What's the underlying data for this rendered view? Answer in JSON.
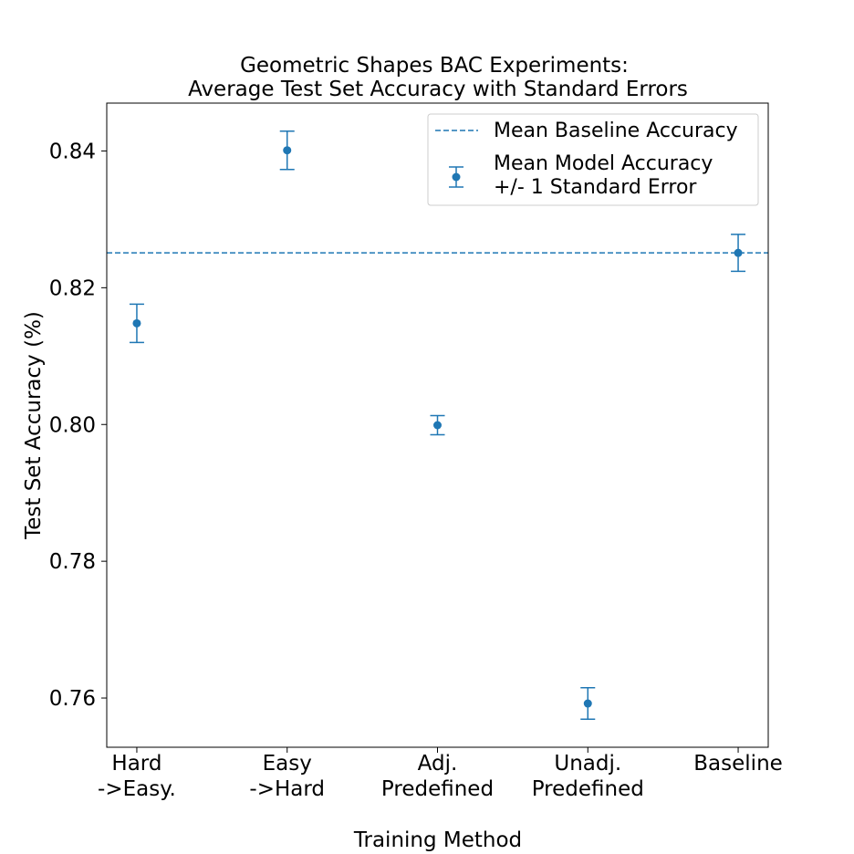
{
  "chart_data": {
    "type": "errorbar",
    "title_line1": "Geometric Shapes BAC Experiments:",
    "title_line2": "Average Test Set Accuracy with Standard Errors",
    "xlabel": "Training Method",
    "ylabel": "Test Set Accuracy (%)",
    "categories": [
      {
        "line1": "Hard",
        "line2": "->Easy."
      },
      {
        "line1": "Easy",
        "line2": "->Hard"
      },
      {
        "line1": "Adj.",
        "line2": "Predefined"
      },
      {
        "line1": "Unadj.",
        "line2": "Predefined"
      },
      {
        "line1": "Baseline",
        "line2": ""
      }
    ],
    "series": [
      {
        "name": "Mean Model Accuracy\n+/- 1 Standard Error",
        "values": [
          0.8148,
          0.8401,
          0.7999,
          0.7592,
          0.8251
        ],
        "errors": [
          0.0028,
          0.0028,
          0.0014,
          0.0023,
          0.0027
        ]
      }
    ],
    "baseline": {
      "name": "Mean Baseline Accuracy",
      "value": 0.8251
    },
    "ylim": [
      0.7528,
      0.847
    ],
    "yticks": [
      0.76,
      0.78,
      0.8,
      0.82,
      0.84
    ],
    "ytick_labels": [
      "0.76",
      "0.78",
      "0.80",
      "0.82",
      "0.84"
    ],
    "legend": {
      "position": "upper-right",
      "entry1": "Mean Baseline Accuracy",
      "entry2_line1": "Mean Model Accuracy",
      "entry2_line2": "+/- 1 Standard Error"
    },
    "grid": false,
    "color": "#1f77b4"
  }
}
